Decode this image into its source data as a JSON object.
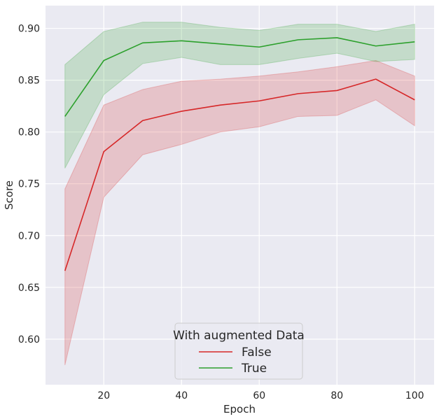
{
  "chart_data": {
    "type": "line",
    "xlabel": "Epoch",
    "ylabel": "Score",
    "xlim": [
      5,
      105
    ],
    "ylim": [
      0.556,
      0.922
    ],
    "xticks": [
      20,
      40,
      60,
      80,
      100
    ],
    "yticks": [
      0.6,
      0.65,
      0.7,
      0.75,
      0.8,
      0.85,
      0.9
    ],
    "grid": true,
    "legend": {
      "title": "With augmented Data",
      "placement": "lower-center"
    },
    "x": [
      10,
      20,
      30,
      40,
      50,
      60,
      70,
      80,
      90,
      100
    ],
    "series": [
      {
        "name": "False",
        "color": "#d62728",
        "fill": "#d62728",
        "values": [
          0.666,
          0.781,
          0.811,
          0.82,
          0.826,
          0.83,
          0.837,
          0.84,
          0.851,
          0.831
        ],
        "lower": [
          0.575,
          0.737,
          0.778,
          0.788,
          0.8,
          0.805,
          0.815,
          0.816,
          0.831,
          0.806
        ],
        "upper": [
          0.745,
          0.826,
          0.841,
          0.849,
          0.851,
          0.854,
          0.858,
          0.863,
          0.869,
          0.854
        ]
      },
      {
        "name": "True",
        "color": "#2ca02c",
        "fill": "#2ca02c",
        "values": [
          0.815,
          0.869,
          0.886,
          0.888,
          0.885,
          0.882,
          0.889,
          0.891,
          0.883,
          0.887
        ],
        "lower": [
          0.765,
          0.836,
          0.866,
          0.872,
          0.865,
          0.865,
          0.871,
          0.876,
          0.868,
          0.87
        ],
        "upper": [
          0.865,
          0.897,
          0.906,
          0.906,
          0.901,
          0.898,
          0.904,
          0.904,
          0.897,
          0.904
        ]
      }
    ]
  }
}
